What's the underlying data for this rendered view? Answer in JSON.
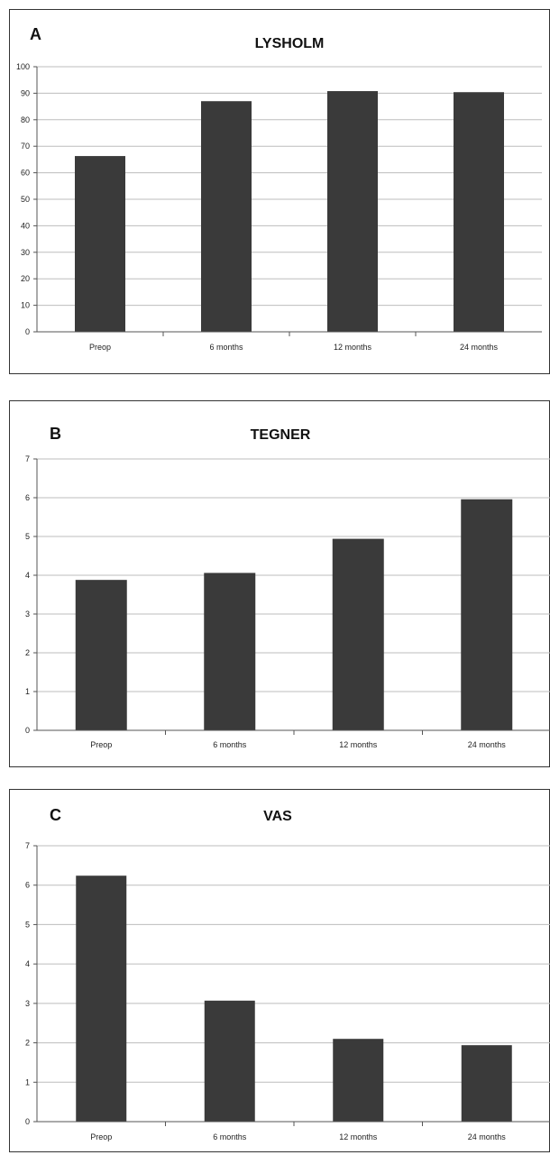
{
  "chart_data": [
    {
      "type": "bar",
      "panel": "A",
      "title": "LYSHOLM",
      "categories": [
        "Preop",
        "6 months",
        "12 months",
        "24 months"
      ],
      "values": [
        66.3,
        87,
        90.8,
        90.4
      ],
      "ylim": [
        0,
        100
      ],
      "yticks": [
        "0",
        "10",
        "20",
        "30",
        "40",
        "50",
        "60",
        "70",
        "80",
        "90",
        "100"
      ],
      "xlabel": "",
      "ylabel": "",
      "grid": true,
      "bar_color": "#3a3a3a",
      "grid_color": "#bdbdbd"
    },
    {
      "type": "bar",
      "panel": "B",
      "title": "TEGNER",
      "categories": [
        "Preop",
        "6 months",
        "12  months",
        "24 months"
      ],
      "values": [
        3.88,
        4.06,
        4.94,
        5.96
      ],
      "ylim": [
        0,
        7
      ],
      "yticks": [
        "0",
        "1",
        "2",
        "3",
        "4",
        "5",
        "6",
        "7"
      ],
      "xlabel": "",
      "ylabel": "",
      "grid": true,
      "bar_color": "#3a3a3a",
      "grid_color": "#bdbdbd"
    },
    {
      "type": "bar",
      "panel": "C",
      "title": "VAS",
      "categories": [
        "Preop",
        "6 months",
        "12 months",
        "24 months"
      ],
      "values": [
        6.24,
        3.07,
        2.1,
        1.94
      ],
      "ylim": [
        0,
        7
      ],
      "yticks": [
        "0",
        "1",
        "2",
        "3",
        "4",
        "5",
        "6",
        "7"
      ],
      "xlabel": "",
      "ylabel": "",
      "grid": true,
      "bar_color": "#3a3a3a",
      "grid_color": "#bdbdbd"
    }
  ]
}
